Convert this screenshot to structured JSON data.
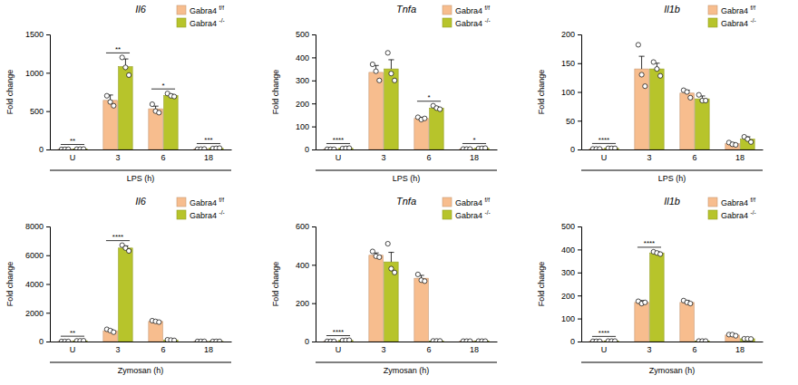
{
  "chart_data": [
    {
      "type": "bar",
      "title": "Il6",
      "x_label": "LPS (h)",
      "y_label": "Fold change",
      "categories": [
        "U",
        "3",
        "6",
        "18"
      ],
      "ylim": [
        0,
        1500
      ],
      "yticks": [
        0,
        500,
        1000,
        1500
      ],
      "legend": "upper right",
      "series": [
        {
          "name": "Gabra4 f/f",
          "color": "#f7bd8e",
          "values": [
            2,
            640,
            530,
            5
          ],
          "errors": [
            1,
            70,
            35,
            2
          ],
          "points": [
            [
              1,
              2,
              3
            ],
            [
              700,
              620,
              570
            ],
            [
              590,
              500,
              480
            ],
            [
              3,
              5,
              7
            ]
          ]
        },
        {
          "name": "Gabra4 -/-",
          "color": "#b7c42b",
          "values": [
            5,
            1080,
            705,
            15
          ],
          "errors": [
            1,
            100,
            15,
            3
          ],
          "points": [
            [
              4,
              5,
              6
            ],
            [
              1200,
              1070,
              970
            ],
            [
              730,
              700,
              690
            ],
            [
              12,
              15,
              18
            ]
          ]
        }
      ],
      "annotations": [
        {
          "category": "U",
          "text": "**"
        },
        {
          "category": "3",
          "text": "**"
        },
        {
          "category": "6",
          "text": "*"
        },
        {
          "category": "18",
          "text": "***"
        }
      ]
    },
    {
      "type": "bar",
      "title": "Tnfa",
      "x_label": "LPS (h)",
      "y_label": "Fold change",
      "categories": [
        "U",
        "3",
        "6",
        "18"
      ],
      "ylim": [
        0,
        500
      ],
      "yticks": [
        0,
        100,
        200,
        300,
        400,
        500
      ],
      "legend": "upper right",
      "series": [
        {
          "name": "Gabra4 f/f",
          "color": "#f7bd8e",
          "values": [
            1,
            335,
            135,
            2
          ],
          "errors": [
            0.5,
            30,
            5,
            1
          ],
          "points": [
            [
              1,
              1,
              1
            ],
            [
              370,
              340,
              300
            ],
            [
              140,
              130,
              135
            ],
            [
              2,
              2,
              2
            ]
          ]
        },
        {
          "name": "Gabra4 -/-",
          "color": "#b7c42b",
          "values": [
            5,
            350,
            180,
            5
          ],
          "errors": [
            1,
            40,
            5,
            1
          ],
          "points": [
            [
              4,
              5,
              6
            ],
            [
              420,
              330,
              300
            ],
            [
              190,
              180,
              175
            ],
            [
              4,
              5,
              6
            ]
          ]
        }
      ],
      "annotations": [
        {
          "category": "U",
          "text": "****"
        },
        {
          "category": "6",
          "text": "*"
        },
        {
          "category": "18",
          "text": "*"
        }
      ]
    },
    {
      "type": "bar",
      "title": "Il1b",
      "x_label": "LPS (h)",
      "y_label": "Fold change",
      "categories": [
        "U",
        "3",
        "6",
        "18"
      ],
      "ylim": [
        0,
        200
      ],
      "yticks": [
        0,
        50,
        100,
        150,
        200
      ],
      "legend": "upper right",
      "series": [
        {
          "name": "Gabra4 f/f",
          "color": "#f7bd8e",
          "values": [
            1,
            140,
            98,
            10
          ],
          "errors": [
            0.5,
            22,
            5,
            2
          ],
          "points": [
            [
              1,
              1,
              1
            ],
            [
              182,
              130,
              110
            ],
            [
              103,
              100,
              90
            ],
            [
              12,
              9,
              8
            ]
          ]
        },
        {
          "name": "Gabra4 -/-",
          "color": "#b7c42b",
          "values": [
            2,
            140,
            88,
            18
          ],
          "errors": [
            0.5,
            10,
            5,
            4
          ],
          "points": [
            [
              2,
              2,
              2
            ],
            [
              152,
              140,
              128
            ],
            [
              95,
              85,
              85
            ],
            [
              22,
              18,
              13
            ]
          ]
        }
      ],
      "annotations": [
        {
          "category": "U",
          "text": "****"
        }
      ]
    },
    {
      "type": "bar",
      "title": "Il6",
      "x_label": "Zymosan (h)",
      "y_label": "Fold change",
      "categories": [
        "U",
        "3",
        "6",
        "18"
      ],
      "ylim": [
        0,
        8000
      ],
      "yticks": [
        0,
        2000,
        4000,
        6000,
        8000
      ],
      "legend": "upper right",
      "series": [
        {
          "name": "Gabra4 f/f",
          "color": "#f7bd8e",
          "values": [
            5,
            750,
            1400,
            10
          ],
          "errors": [
            2,
            80,
            60,
            3
          ],
          "points": [
            [
              4,
              5,
              6
            ],
            [
              850,
              760,
              650
            ],
            [
              1450,
              1400,
              1350
            ],
            [
              8,
              10,
              12
            ]
          ]
        },
        {
          "name": "Gabra4 -/-",
          "color": "#b7c42b",
          "values": [
            50,
            6500,
            100,
            10
          ],
          "errors": [
            5,
            150,
            20,
            3
          ],
          "points": [
            [
              45,
              50,
              55
            ],
            [
              6700,
              6500,
              6300
            ],
            [
              120,
              100,
              80
            ],
            [
              8,
              10,
              12
            ]
          ]
        }
      ],
      "annotations": [
        {
          "category": "U",
          "text": "**"
        },
        {
          "category": "3",
          "text": "****"
        }
      ]
    },
    {
      "type": "bar",
      "title": "Tnfa",
      "x_label": "Zymosan (h)",
      "y_label": "Fold change",
      "categories": [
        "U",
        "3",
        "6",
        "18"
      ],
      "ylim": [
        0,
        600
      ],
      "yticks": [
        0,
        200,
        400,
        600
      ],
      "legend": "upper right",
      "series": [
        {
          "name": "Gabra4 f/f",
          "color": "#f7bd8e",
          "values": [
            1,
            450,
            330,
            2
          ],
          "errors": [
            0.5,
            12,
            15,
            1
          ],
          "points": [
            [
              1,
              1,
              1
            ],
            [
              470,
              445,
              440
            ],
            [
              350,
              320,
              315
            ],
            [
              2,
              2,
              2
            ]
          ]
        },
        {
          "name": "Gabra4 -/-",
          "color": "#b7c42b",
          "values": [
            6,
            415,
            3,
            2
          ],
          "errors": [
            1,
            50,
            1,
            1
          ],
          "points": [
            [
              5,
              6,
              7
            ],
            [
              510,
              380,
              360
            ],
            [
              3,
              3,
              3
            ],
            [
              2,
              2,
              2
            ]
          ]
        }
      ],
      "annotations": [
        {
          "category": "U",
          "text": "****"
        }
      ]
    },
    {
      "type": "bar",
      "title": "Il1b",
      "x_label": "Zymosan (h)",
      "y_label": "Fold change",
      "categories": [
        "U",
        "3",
        "6",
        "18"
      ],
      "ylim": [
        0,
        500
      ],
      "yticks": [
        0,
        100,
        200,
        300,
        400,
        500
      ],
      "legend": "upper right",
      "series": [
        {
          "name": "Gabra4 f/f",
          "color": "#f7bd8e",
          "values": [
            1,
            170,
            170,
            28
          ],
          "errors": [
            0.5,
            8,
            8,
            4
          ],
          "points": [
            [
              1,
              1,
              1
            ],
            [
              175,
              165,
              170
            ],
            [
              178,
              170,
              165
            ],
            [
              30,
              30,
              25
            ]
          ]
        },
        {
          "name": "Gabra4 -/-",
          "color": "#b7c42b",
          "values": [
            2,
            385,
            2,
            12
          ],
          "errors": [
            0.5,
            5,
            1,
            1
          ],
          "points": [
            [
              2,
              2,
              2
            ],
            [
              390,
              385,
              380
            ],
            [
              2,
              2,
              2
            ],
            [
              12,
              12,
              11
            ]
          ]
        }
      ],
      "annotations": [
        {
          "category": "U",
          "text": "****"
        },
        {
          "category": "3",
          "text": "****"
        }
      ]
    }
  ]
}
